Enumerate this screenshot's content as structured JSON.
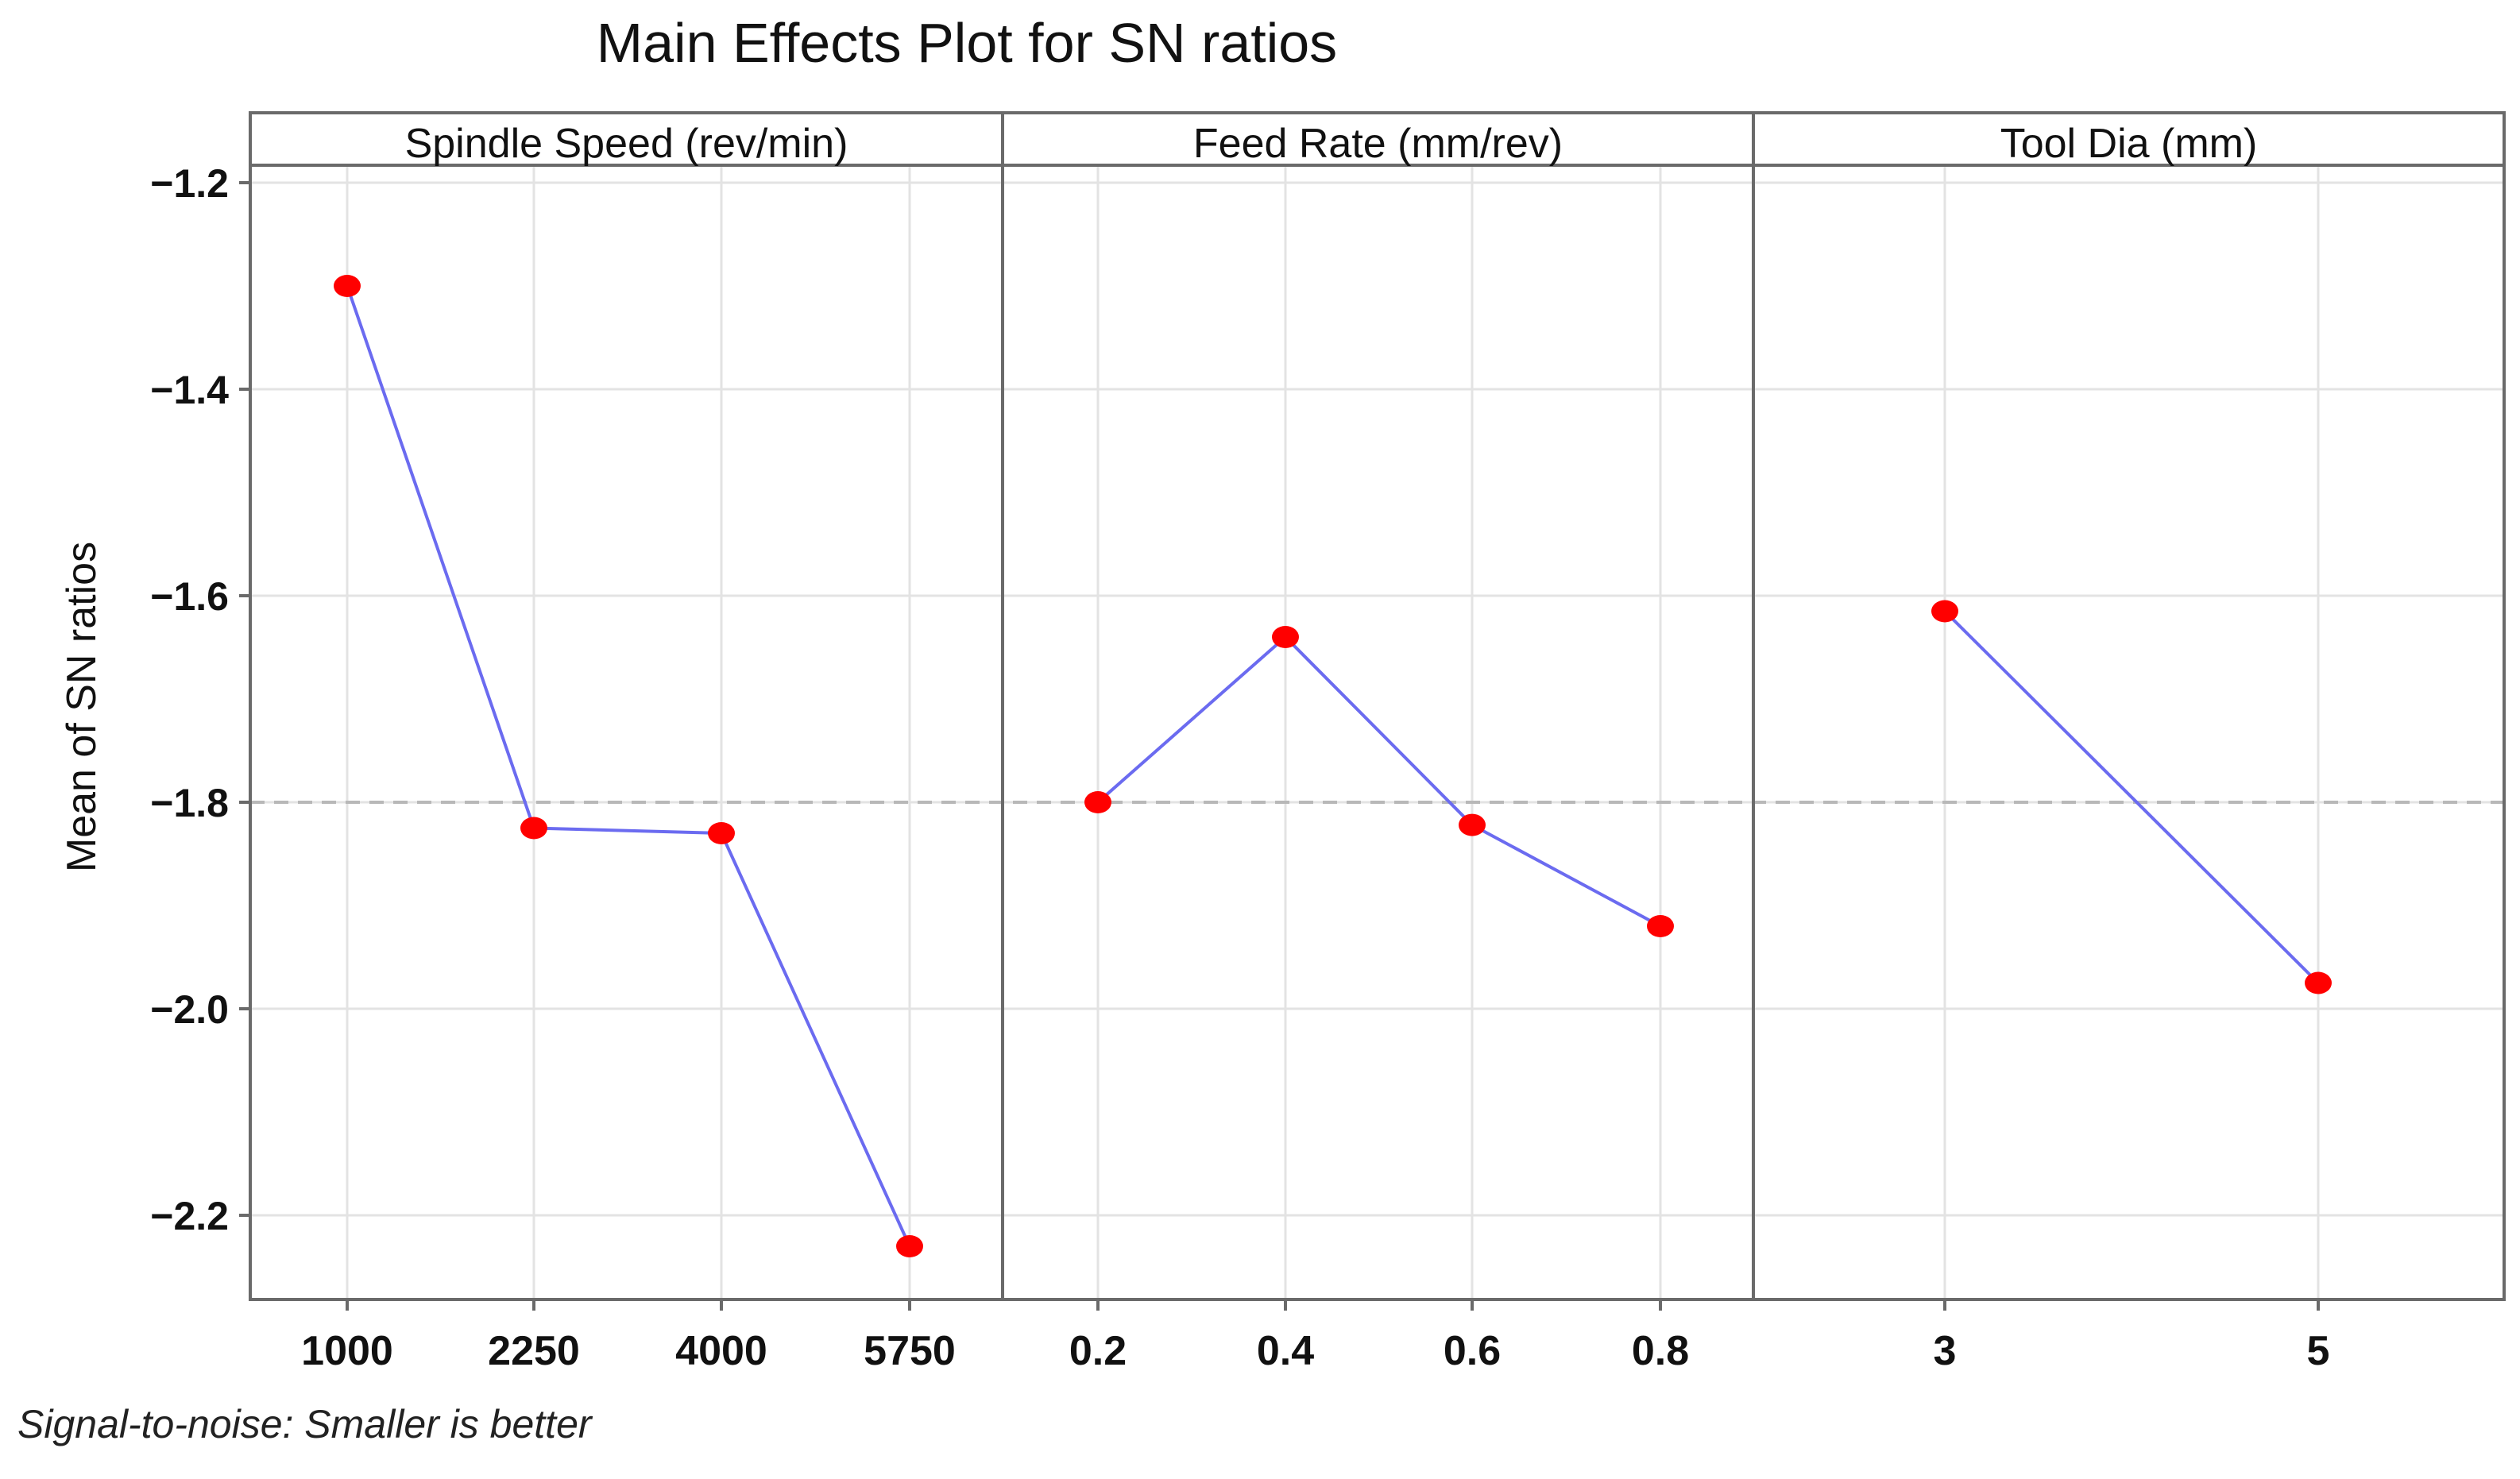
{
  "chart_data": {
    "type": "line",
    "title": "Main Effects Plot for SN ratios",
    "ylabel": "Mean of SN ratios",
    "xlabel": "",
    "ylim": [
      -2.29,
      -1.18
    ],
    "yticks": [
      -1.2,
      -1.4,
      -1.6,
      -1.8,
      -2.0,
      -2.2
    ],
    "ytick_labels": [
      "−1.2",
      "−1.4",
      "−1.6",
      "−1.8",
      "−2.0",
      "−2.2"
    ],
    "reference_line": -1.8,
    "grid": true,
    "footnote": "Signal-to-noise: Smaller is better",
    "colors": {
      "line": "#6b6bf0",
      "marker": "#ff0000",
      "grid": "#e3e3e3",
      "reference": "#b8b8b8",
      "frame": "#6a6a6a"
    },
    "panels": [
      {
        "label": "Spindle Speed (rev/min)",
        "categories": [
          "1000",
          "2250",
          "4000",
          "5750"
        ],
        "values": [
          -1.3,
          -1.825,
          -1.83,
          -2.23
        ]
      },
      {
        "label": "Feed Rate (mm/rev)",
        "categories": [
          "0.2",
          "0.4",
          "0.6",
          "0.8"
        ],
        "values": [
          -1.8,
          -1.64,
          -1.822,
          -1.92
        ]
      },
      {
        "label": "Tool Dia (mm)",
        "categories": [
          "3",
          "5"
        ],
        "values": [
          -1.615,
          -1.975
        ]
      }
    ]
  }
}
